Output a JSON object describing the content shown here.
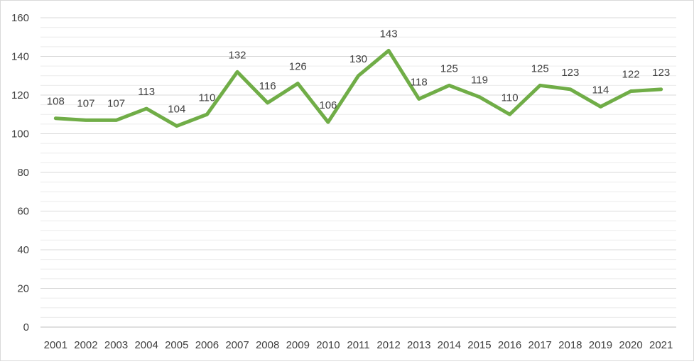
{
  "chart_data": {
    "type": "line",
    "title": "",
    "xlabel": "",
    "ylabel": "",
    "x": [
      "2001",
      "2002",
      "2003",
      "2004",
      "2005",
      "2006",
      "2007",
      "2008",
      "2009",
      "2010",
      "2011",
      "2012",
      "2013",
      "2014",
      "2015",
      "2016",
      "2017",
      "2018",
      "2019",
      "2020",
      "2021"
    ],
    "series": [
      {
        "values": [
          108,
          107,
          107,
          113,
          104,
          110,
          132,
          116,
          126,
          106,
          130,
          143,
          118,
          125,
          119,
          110,
          125,
          123,
          114,
          122,
          123
        ],
        "color": "#70ad47"
      }
    ],
    "ylim": [
      0,
      160
    ],
    "y_major_ticks": [
      "0",
      "20",
      "40",
      "60",
      "80",
      "100",
      "120",
      "140",
      "160"
    ],
    "grid": true,
    "legend": "none",
    "data_labels": [
      "108",
      "107",
      "107",
      "113",
      "104",
      "110",
      "132",
      "116",
      "126",
      "106",
      "130",
      "143",
      "118",
      "125",
      "119",
      "110",
      "125",
      "123",
      "114",
      "122",
      "123"
    ]
  }
}
